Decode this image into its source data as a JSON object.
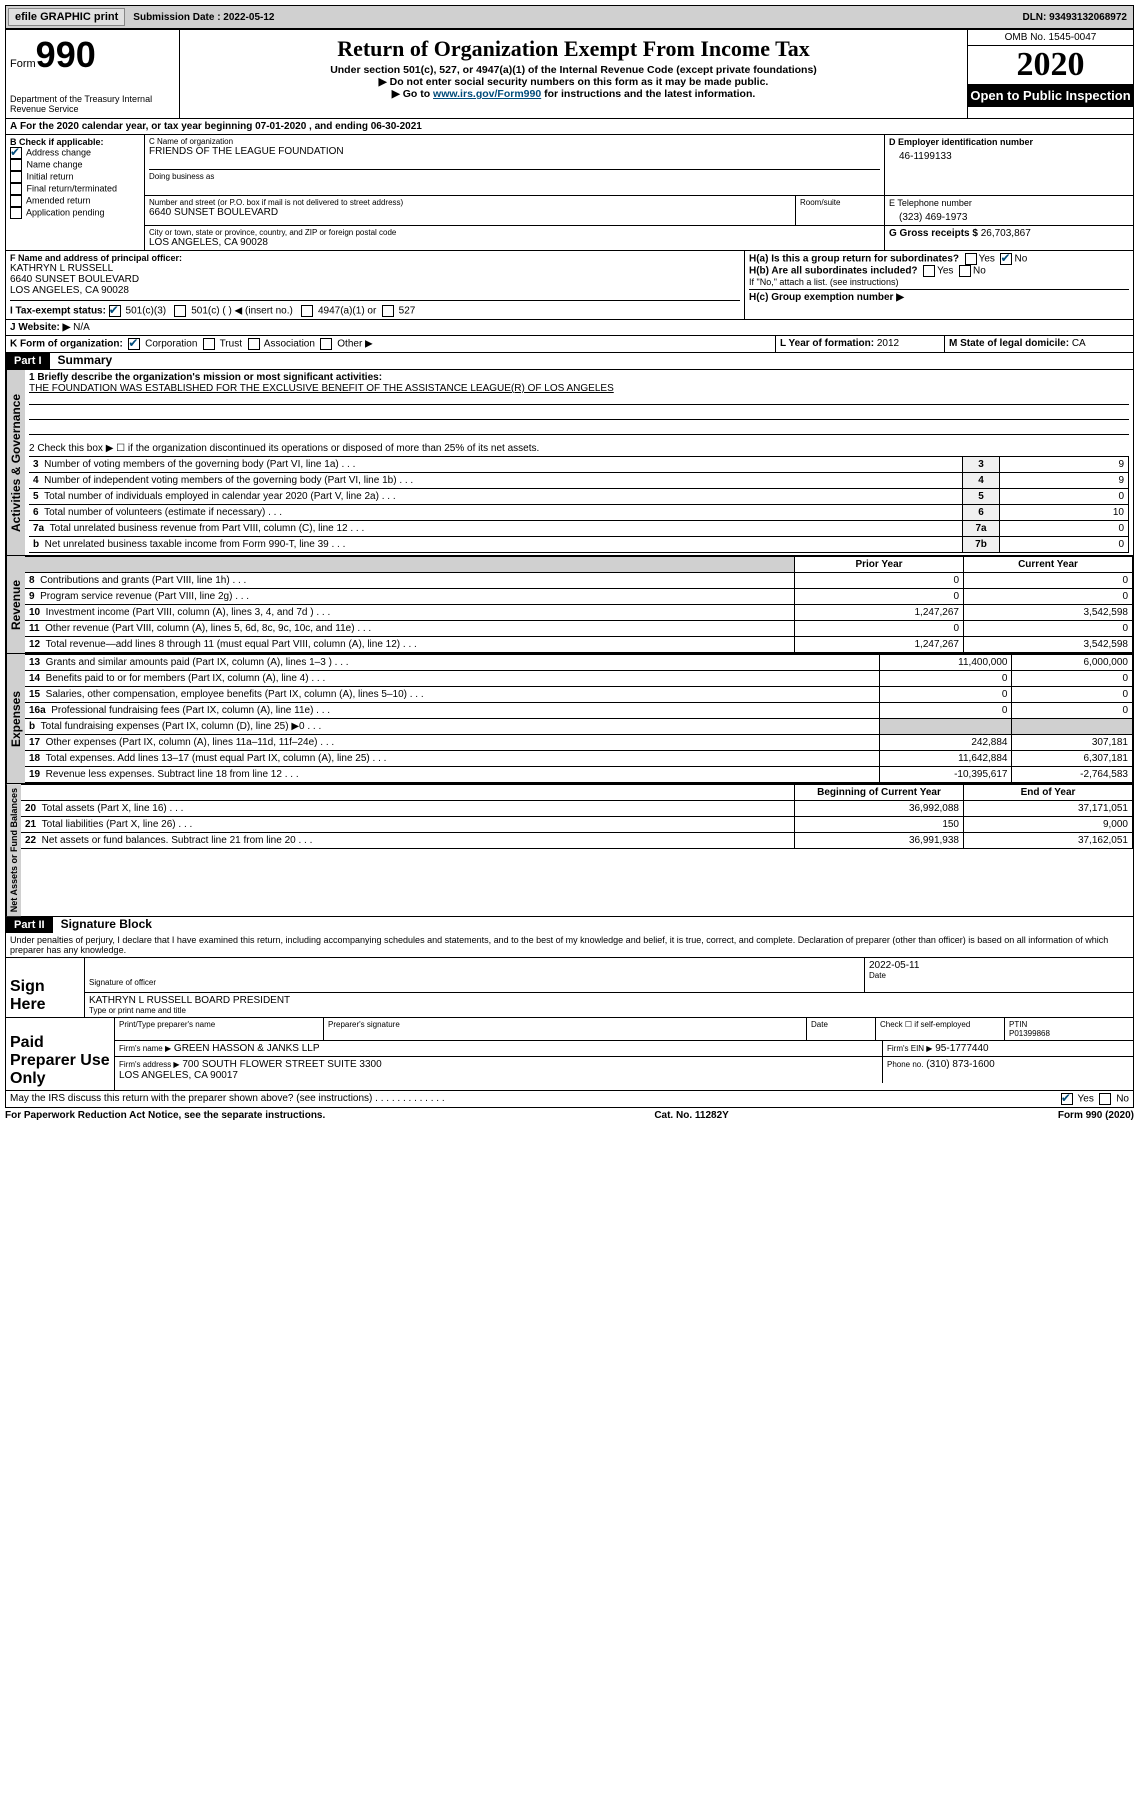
{
  "topbar": {
    "efile_btn": "efile GRAPHIC print",
    "submission": "Submission Date : 2022-05-12",
    "dln": "DLN: 93493132068972"
  },
  "header": {
    "form_label": "Form",
    "form_no": "990",
    "dept": "Department of the Treasury\nInternal Revenue Service",
    "title": "Return of Organization Exempt From Income Tax",
    "sub1": "Under section 501(c), 527, or 4947(a)(1) of the Internal Revenue Code (except private foundations)",
    "sub2": "▶ Do not enter social security numbers on this form as it may be made public.",
    "sub3_pre": "▶ Go to ",
    "sub3_link": "www.irs.gov/Form990",
    "sub3_post": " for instructions and the latest information.",
    "omb": "OMB No. 1545-0047",
    "year": "2020",
    "inspection": "Open to Public Inspection"
  },
  "A": {
    "text": "For the 2020 calendar year, or tax year beginning 07-01-2020   , and ending 06-30-2021"
  },
  "B": {
    "label": "B Check if applicable:",
    "items": [
      "Address change",
      "Name change",
      "Initial return",
      "Final return/terminated",
      "Amended return",
      "Application pending"
    ],
    "checked": [
      true,
      false,
      false,
      false,
      false,
      false
    ]
  },
  "C": {
    "name_label": "C Name of organization",
    "name": "FRIENDS OF THE LEAGUE FOUNDATION",
    "dba_label": "Doing business as",
    "street_label": "Number and street (or P.O. box if mail is not delivered to street address)",
    "room_label": "Room/suite",
    "street": "6640 SUNSET BOULEVARD",
    "city_label": "City or town, state or province, country, and ZIP or foreign postal code",
    "city": "LOS ANGELES, CA  90028"
  },
  "D": {
    "label": "D Employer identification number",
    "val": "46-1199133"
  },
  "E": {
    "label": "E Telephone number",
    "val": "(323) 469-1973"
  },
  "G": {
    "label": "G Gross receipts $",
    "val": "26,703,867"
  },
  "F": {
    "label": "F  Name and address of principal officer:",
    "name": "KATHRYN L RUSSELL",
    "addr1": "6640 SUNSET BOULEVARD",
    "addr2": "LOS ANGELES, CA  90028"
  },
  "H": {
    "a": "H(a)  Is this a group return for subordinates?",
    "b": "H(b)  Are all subordinates included?",
    "b_note": "If \"No,\" attach a list. (see instructions)",
    "c": "H(c)  Group exemption number ▶",
    "yes": "Yes",
    "no": "No"
  },
  "I": {
    "label": "I   Tax-exempt status:",
    "opts": [
      "501(c)(3)",
      "501(c) (  ) ◀ (insert no.)",
      "4947(a)(1) or",
      "527"
    ]
  },
  "J": {
    "label": "J   Website: ▶",
    "val": "N/A"
  },
  "K": {
    "label": "K Form of organization:",
    "opts": [
      "Corporation",
      "Trust",
      "Association",
      "Other ▶"
    ]
  },
  "L": {
    "label": "L Year of formation:",
    "val": "2012"
  },
  "M": {
    "label": "M State of legal domicile:",
    "val": "CA"
  },
  "part1": {
    "hdr": "Part I",
    "title": "Summary",
    "q1_label": "1  Briefly describe the organization's mission or most significant activities:",
    "q1_val": "THE FOUNDATION WAS ESTABLISHED FOR THE EXCLUSIVE BENEFIT OF THE ASSISTANCE LEAGUE(R) OF LOS ANGELES",
    "q2": "2  Check this box ▶ ☐  if the organization discontinued its operations or disposed of more than 25% of its net assets.",
    "lines_gov": [
      {
        "n": "3",
        "t": "Number of voting members of the governing body (Part VI, line 1a)",
        "box": "3",
        "v": "9"
      },
      {
        "n": "4",
        "t": "Number of independent voting members of the governing body (Part VI, line 1b)",
        "box": "4",
        "v": "9"
      },
      {
        "n": "5",
        "t": "Total number of individuals employed in calendar year 2020 (Part V, line 2a)",
        "box": "5",
        "v": "0"
      },
      {
        "n": "6",
        "t": "Total number of volunteers (estimate if necessary)",
        "box": "6",
        "v": "10"
      },
      {
        "n": "7a",
        "t": "Total unrelated business revenue from Part VIII, column (C), line 12",
        "box": "7a",
        "v": "0"
      },
      {
        "n": "b",
        "t": "Net unrelated business taxable income from Form 990-T, line 39",
        "box": "7b",
        "v": "0"
      }
    ],
    "col_prior": "Prior Year",
    "col_curr": "Current Year",
    "revenue": [
      {
        "n": "8",
        "t": "Contributions and grants (Part VIII, line 1h)",
        "p": "0",
        "c": "0"
      },
      {
        "n": "9",
        "t": "Program service revenue (Part VIII, line 2g)",
        "p": "0",
        "c": "0"
      },
      {
        "n": "10",
        "t": "Investment income (Part VIII, column (A), lines 3, 4, and 7d )",
        "p": "1,247,267",
        "c": "3,542,598"
      },
      {
        "n": "11",
        "t": "Other revenue (Part VIII, column (A), lines 5, 6d, 8c, 9c, 10c, and 11e)",
        "p": "0",
        "c": "0"
      },
      {
        "n": "12",
        "t": "Total revenue—add lines 8 through 11 (must equal Part VIII, column (A), line 12)",
        "p": "1,247,267",
        "c": "3,542,598"
      }
    ],
    "expenses": [
      {
        "n": "13",
        "t": "Grants and similar amounts paid (Part IX, column (A), lines 1–3 )",
        "p": "11,400,000",
        "c": "6,000,000"
      },
      {
        "n": "14",
        "t": "Benefits paid to or for members (Part IX, column (A), line 4)",
        "p": "0",
        "c": "0"
      },
      {
        "n": "15",
        "t": "Salaries, other compensation, employee benefits (Part IX, column (A), lines 5–10)",
        "p": "0",
        "c": "0"
      },
      {
        "n": "16a",
        "t": "Professional fundraising fees (Part IX, column (A), line 11e)",
        "p": "0",
        "c": "0"
      },
      {
        "n": "b",
        "t": "Total fundraising expenses (Part IX, column (D), line 25) ▶0",
        "p": "",
        "c": ""
      },
      {
        "n": "17",
        "t": "Other expenses (Part IX, column (A), lines 11a–11d, 11f–24e)",
        "p": "242,884",
        "c": "307,181"
      },
      {
        "n": "18",
        "t": "Total expenses. Add lines 13–17 (must equal Part IX, column (A), line 25)",
        "p": "11,642,884",
        "c": "6,307,181"
      },
      {
        "n": "19",
        "t": "Revenue less expenses. Subtract line 18 from line 12",
        "p": "-10,395,617",
        "c": "-2,764,583"
      }
    ],
    "col_beg": "Beginning of Current Year",
    "col_end": "End of Year",
    "netassets": [
      {
        "n": "20",
        "t": "Total assets (Part X, line 16)",
        "p": "36,992,088",
        "c": "37,171,051"
      },
      {
        "n": "21",
        "t": "Total liabilities (Part X, line 26)",
        "p": "150",
        "c": "9,000"
      },
      {
        "n": "22",
        "t": "Net assets or fund balances. Subtract line 21 from line 20",
        "p": "36,991,938",
        "c": "37,162,051"
      }
    ],
    "vlabels": {
      "gov": "Activities & Governance",
      "rev": "Revenue",
      "exp": "Expenses",
      "net": "Net Assets or Fund Balances"
    }
  },
  "part2": {
    "hdr": "Part II",
    "title": "Signature Block",
    "perjury": "Under penalties of perjury, I declare that I have examined this return, including accompanying schedules and statements, and to the best of my knowledge and belief, it is true, correct, and complete. Declaration of preparer (other than officer) is based on all information of which preparer has any knowledge.",
    "sign_here": "Sign Here",
    "sig_officer": "Signature of officer",
    "date": "Date",
    "date_val": "2022-05-11",
    "officer_name": "KATHRYN L RUSSELL  BOARD PRESIDENT",
    "type_name": "Type or print name and title",
    "paid_prep": "Paid Preparer Use Only",
    "prep_name_lbl": "Print/Type preparer's name",
    "prep_sig_lbl": "Preparer's signature",
    "date_lbl": "Date",
    "check_self": "Check ☐  if self-employed",
    "ptin_lbl": "PTIN",
    "ptin": "P01399868",
    "firm_name_lbl": "Firm's name   ▶",
    "firm_name": "GREEN HASSON & JANKS LLP",
    "firm_ein_lbl": "Firm's EIN ▶",
    "firm_ein": "95-1777440",
    "firm_addr_lbl": "Firm's address ▶",
    "firm_addr": "700 SOUTH FLOWER STREET SUITE 3300\nLOS ANGELES, CA  90017",
    "phone_lbl": "Phone no.",
    "phone": "(310) 873-1600",
    "discuss": "May the IRS discuss this return with the preparer shown above? (see instructions)"
  },
  "footer": {
    "left": "For Paperwork Reduction Act Notice, see the separate instructions.",
    "mid": "Cat. No. 11282Y",
    "right": "Form 990 (2020)"
  }
}
